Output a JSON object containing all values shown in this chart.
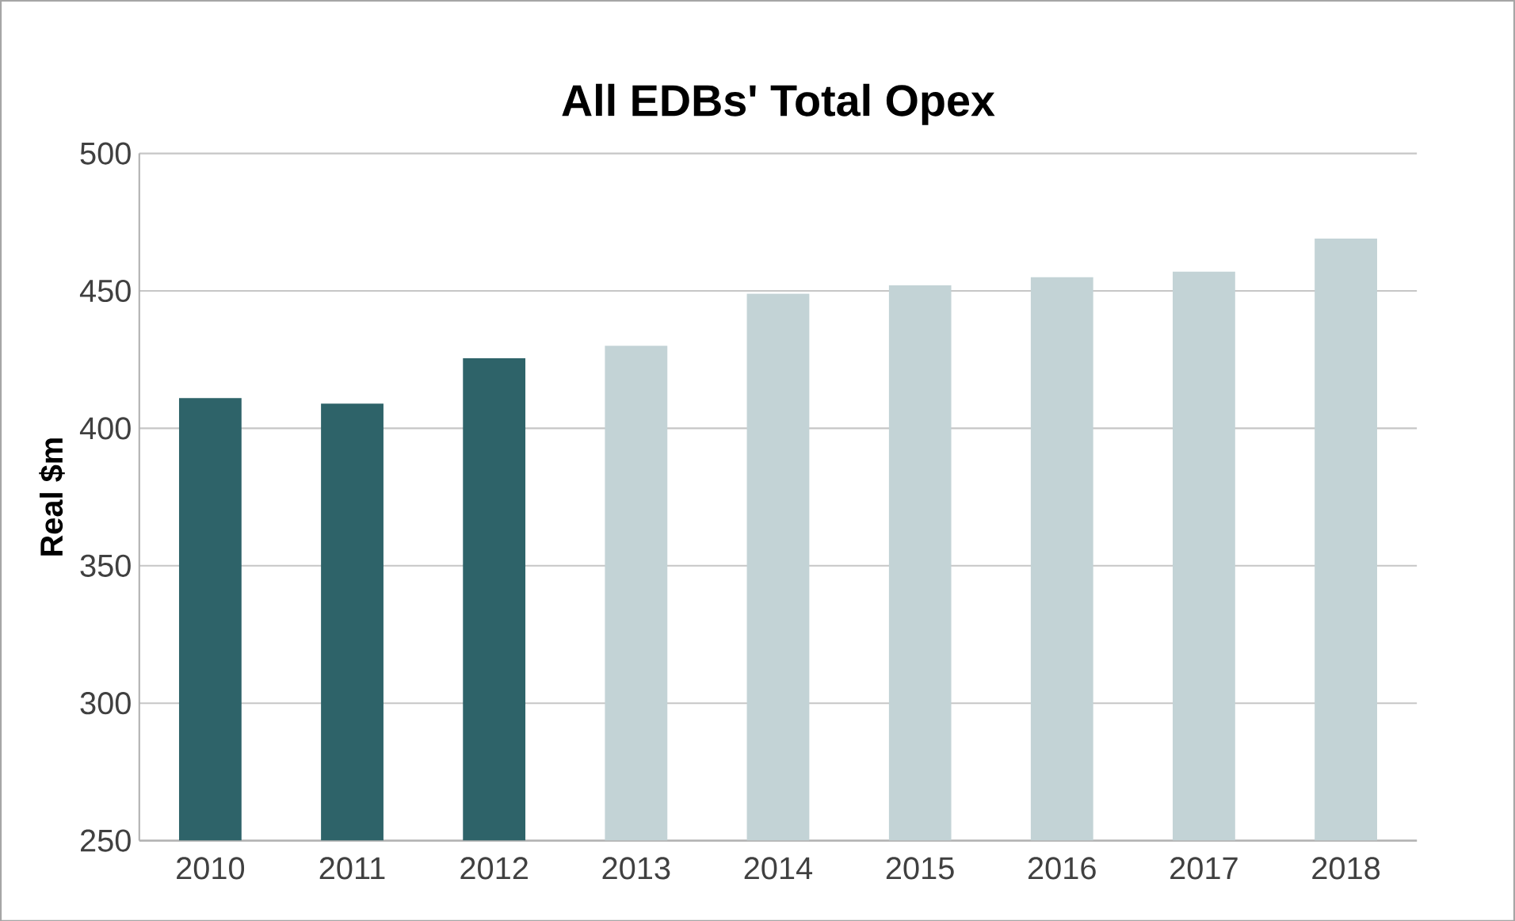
{
  "chart_data": {
    "type": "bar",
    "title": "All EDBs' Total Opex",
    "ylabel": "Real $m",
    "categories": [
      "2010",
      "2011",
      "2012",
      "2013",
      "2014",
      "2015",
      "2016",
      "2017",
      "2018"
    ],
    "values": [
      411,
      409,
      425.5,
      430,
      449,
      452,
      455,
      457,
      469
    ],
    "colors": [
      "#2e6369",
      "#2e6369",
      "#2e6369",
      "#c3d3d6",
      "#c3d3d6",
      "#c3d3d6",
      "#c3d3d6",
      "#c3d3d6",
      "#c3d3d6"
    ],
    "ylim": [
      250,
      500
    ],
    "yticks": [
      250,
      300,
      350,
      400,
      450,
      500
    ],
    "grid": "y"
  }
}
